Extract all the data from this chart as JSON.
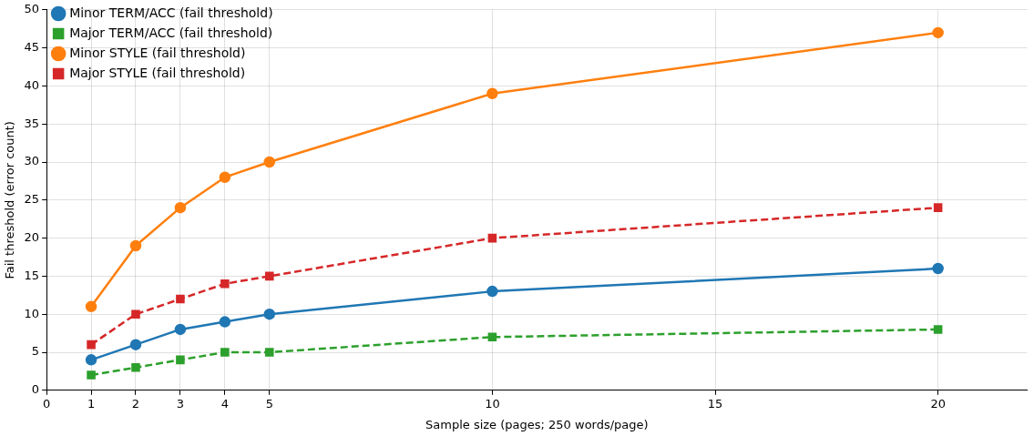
{
  "chart_data": {
    "type": "line",
    "xlabel": "Sample size (pages; 250 words/page)",
    "ylabel": "Fail threshold (error count)",
    "x": [
      1,
      2,
      3,
      4,
      5,
      10,
      20
    ],
    "series": [
      {
        "name": "Minor TERM/ACC (fail threshold)",
        "color": "#1f77b4",
        "values": [
          4,
          6,
          8,
          9,
          10,
          13,
          16
        ],
        "marker": "circle",
        "line_style": "solid"
      },
      {
        "name": "Major TERM/ACC (fail threshold)",
        "color": "#2ca02c",
        "values": [
          2,
          3,
          4,
          5,
          5,
          7,
          8
        ],
        "marker": "square",
        "line_style": "dashed"
      },
      {
        "name": "Minor STYLE (fail threshold)",
        "color": "#ff7f0e",
        "values": [
          11,
          19,
          24,
          28,
          30,
          39,
          47
        ],
        "marker": "circle",
        "line_style": "solid"
      },
      {
        "name": "Major STYLE (fail threshold)",
        "color": "#d62728",
        "values": [
          6,
          10,
          12,
          14,
          15,
          20,
          24
        ],
        "marker": "square",
        "line_style": "dashed"
      }
    ],
    "xlim": [
      0,
      22
    ],
    "xticks": [
      0,
      1,
      2,
      3,
      4,
      5,
      10,
      15,
      20
    ],
    "ylim": [
      0,
      50
    ],
    "yticks": [
      0,
      5,
      10,
      15,
      20,
      25,
      30,
      35,
      40,
      45,
      50
    ],
    "grid": true,
    "legend": "top left"
  }
}
